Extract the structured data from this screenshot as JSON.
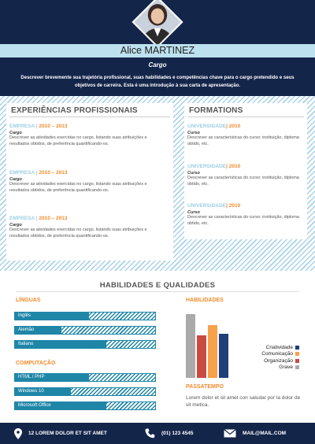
{
  "header": {
    "name": "Alice MARTINEZ",
    "cargo": "Cargo",
    "intro": "Descrever brevemente sua trajetória profissional, suas habilidades e competências chave para o cargo pretendido e seus objetivos de carreira. Esta é uma introdução à sua carta de apresentação."
  },
  "experience": {
    "title": "EXPERIÊNCIAS PROFISSIONAIS",
    "items": [
      {
        "company": "EMPRESA",
        "sep": "|",
        "years": "2010 – 2013",
        "role": "Cargo",
        "desc": "Descrever as atividades exercidas no cargo, listando suas atribuições e resultados obtidos, de preferência quantificando-os."
      },
      {
        "company": "EMPRESA",
        "sep": "|",
        "years": "2010 – 2013",
        "role": "Cargo",
        "desc": "Descrever as atividades exercidas no cargo, listando suas atribuições e resultados obtidos, de preferência quantificando-os."
      },
      {
        "company": "EMPRESA",
        "sep": "|",
        "years": "2010 – 2013",
        "role": "Cargo",
        "desc": "Descrever as atividades exercidas no cargo, listando suas atribuições e resultados obtidos, de preferência quantificando-os."
      }
    ]
  },
  "formations": {
    "title": "FORMATIONS",
    "items": [
      {
        "school": "UNIVERSIDADE",
        "sep": "|",
        "year": "2010",
        "course": "Curso",
        "desc": "Descrever as características do curso: instituição, diploma obtido, etc."
      },
      {
        "school": "UNIVERSIDADE",
        "sep": "|",
        "year": "2010",
        "course": "Curso",
        "desc": "Descrever as características do curso: instituição, diploma obtido, etc."
      },
      {
        "school": "UNIVERSIDADE",
        "sep": "|",
        "year": "2010",
        "course": "Curso",
        "desc": "Descrever as características do curso: instituição, diploma obtido, etc."
      }
    ]
  },
  "skills": {
    "title": "HABILIDADES E QUALIDADES",
    "languages_label": "LÍNGUAS",
    "languages": [
      {
        "name": "Inglês",
        "level": 0.53
      },
      {
        "name": "Alemão",
        "level": 0.33
      },
      {
        "name": "Italiano",
        "level": 0.65
      }
    ],
    "computing_label": "COMPUTAÇÃO",
    "computing": [
      {
        "name": "HTML / PHP",
        "level": 0.53
      },
      {
        "name": "Windows 10",
        "level": 0.4
      },
      {
        "name": "Microsoft Office",
        "level": 0.65
      }
    ],
    "abilities_label": "HABILIDADES",
    "abilities": [
      {
        "name": "Criatividade",
        "value": 0.62,
        "color": "#1f3f7a"
      },
      {
        "name": "Comunicação",
        "value": 0.75,
        "color": "#f7a14a"
      },
      {
        "name": "Organização",
        "value": 0.6,
        "color": "#c84b41"
      },
      {
        "name": "Grave",
        "value": 0.9,
        "color": "#aaaaaa"
      }
    ],
    "hobbies_label": "PASSATEMPO",
    "hobbies_text": "Lorem dolor et sit amet con saludar por la dolor de sit metica."
  },
  "footer": {
    "address": "12 LOREM DOLOR ET SIT AMET",
    "phone": "(01) 123 4545",
    "email": "MAIL@MAIL.COM"
  }
}
